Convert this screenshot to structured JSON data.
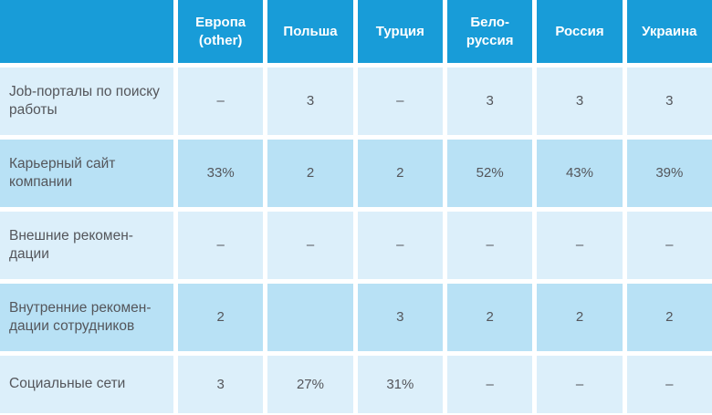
{
  "chart_data": {
    "type": "table",
    "title": "",
    "columns": [
      "Европа\n(other)",
      "Польша",
      "Турция",
      "Бело-\nруссия",
      "Россия",
      "Украина"
    ],
    "rows": [
      {
        "label": "Job-порталы по поиску\nработы",
        "values": [
          "–",
          "3",
          "–",
          "3",
          "3",
          "3"
        ]
      },
      {
        "label": "Карьерный сайт\nкомпании",
        "values": [
          "33%",
          "2",
          "2",
          "52%",
          "43%",
          "39%"
        ]
      },
      {
        "label": "Внешние рекомен-\nдации",
        "values": [
          "–",
          "–",
          "–",
          "–",
          "–",
          "–"
        ]
      },
      {
        "label": "Внутренние рекомен-\nдации сотрудников",
        "values": [
          "2",
          "",
          "3",
          "2",
          "2",
          "2"
        ]
      },
      {
        "label": "Социальные сети",
        "values": [
          "3",
          "27%",
          "31%",
          "–",
          "–",
          "–"
        ]
      }
    ],
    "layout_hints": {
      "zebra_pattern": [
        "light",
        "dark",
        "light",
        "dark",
        "light"
      ],
      "legend_position": "none",
      "grid": "white-gaps-between-cells"
    },
    "colors": {
      "header_bg": "#189CD8",
      "header_text": "#FFFFFF",
      "row_light_bg": "#DCEFFA",
      "row_dark_bg": "#B8E1F5",
      "cell_text": "#54565B",
      "gap": "#FFFFFF"
    }
  }
}
